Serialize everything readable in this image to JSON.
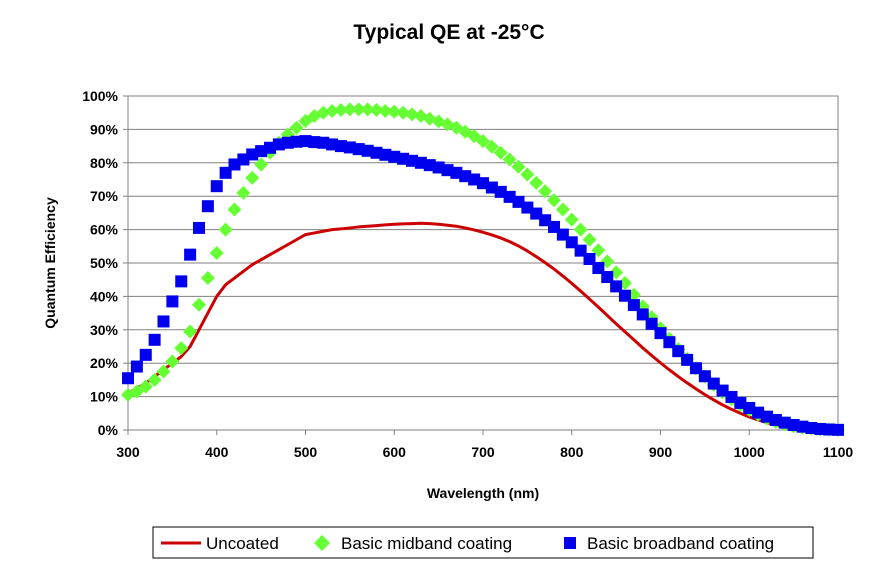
{
  "chart_data": {
    "type": "scatter",
    "title": "Typical QE at -25°C",
    "xlabel": "Wavelength (nm)",
    "ylabel": "Quantum Efficiency",
    "xlim": [
      300,
      1100
    ],
    "ylim": [
      0,
      100
    ],
    "x_ticks": [
      300,
      400,
      500,
      600,
      700,
      800,
      900,
      1000,
      1100
    ],
    "y_ticks": [
      0,
      10,
      20,
      30,
      40,
      50,
      60,
      70,
      80,
      90,
      100
    ],
    "y_tick_labels": [
      "0%",
      "10%",
      "20%",
      "30%",
      "40%",
      "50%",
      "60%",
      "70%",
      "80%",
      "90%",
      "100%"
    ],
    "grid": "horizontal",
    "legend_position": "bottom",
    "series": [
      {
        "name": "Uncoated",
        "style": "line",
        "color": "#cc0000",
        "x": [
          300,
          310,
          320,
          330,
          340,
          350,
          360,
          370,
          380,
          390,
          400,
          410,
          420,
          430,
          440,
          450,
          460,
          470,
          480,
          490,
          500,
          510,
          520,
          530,
          540,
          550,
          560,
          570,
          580,
          590,
          600,
          610,
          620,
          630,
          640,
          650,
          660,
          670,
          680,
          690,
          700,
          710,
          720,
          730,
          740,
          750,
          760,
          770,
          780,
          790,
          800,
          810,
          820,
          830,
          840,
          850,
          860,
          870,
          880,
          890,
          900,
          910,
          920,
          930,
          940,
          950,
          960,
          970,
          980,
          990,
          1000,
          1010,
          1020,
          1030,
          1040,
          1050,
          1060,
          1070,
          1080,
          1090,
          1100
        ],
        "y": [
          11,
          12.5,
          14,
          16,
          18,
          20,
          22,
          25,
          30,
          35,
          40,
          43.5,
          45.5,
          47.5,
          49.5,
          51,
          52.5,
          54,
          55.5,
          57,
          58.5,
          59,
          59.5,
          60,
          60.2,
          60.5,
          60.8,
          61,
          61.2,
          61.4,
          61.6,
          61.7,
          61.8,
          61.9,
          61.8,
          61.6,
          61.3,
          61,
          60.5,
          59.9,
          59.2,
          58.4,
          57.5,
          56.4,
          55.1,
          53.6,
          51.9,
          50.1,
          48.2,
          46.1,
          43.9,
          41.6,
          39.2,
          36.8,
          34.3,
          31.8,
          29.4,
          27,
          24.6,
          22.3,
          20.1,
          18,
          16,
          14.1,
          12.3,
          10.6,
          9,
          7.5,
          6.2,
          5,
          3.9,
          3,
          2.2,
          1.5,
          1,
          0.6,
          0.3,
          0.15,
          0.05,
          0,
          0
        ]
      },
      {
        "name": "Basic midband coating",
        "style": "diamond",
        "color": "#66ff33",
        "x": [
          300,
          310,
          320,
          330,
          340,
          350,
          360,
          370,
          380,
          390,
          400,
          410,
          420,
          430,
          440,
          450,
          460,
          470,
          480,
          490,
          500,
          510,
          520,
          530,
          540,
          550,
          560,
          570,
          580,
          590,
          600,
          610,
          620,
          630,
          640,
          650,
          660,
          670,
          680,
          690,
          700,
          710,
          720,
          730,
          740,
          750,
          760,
          770,
          780,
          790,
          800,
          810,
          820,
          830,
          840,
          850,
          860,
          870,
          880,
          890,
          900,
          910,
          920,
          930,
          940,
          950,
          960,
          970,
          980,
          990,
          1000,
          1010,
          1020,
          1030,
          1040,
          1050,
          1060,
          1070,
          1080,
          1090,
          1100
        ],
        "y": [
          10.5,
          11.5,
          13,
          15,
          17.5,
          20.5,
          24.5,
          29.5,
          37.5,
          45.5,
          53,
          60,
          66,
          71,
          75.5,
          79.5,
          83,
          86,
          88.5,
          90.5,
          92.5,
          94,
          95,
          95.5,
          95.8,
          96,
          96,
          96,
          95.8,
          95.5,
          95.3,
          95,
          94.5,
          94,
          93.2,
          92.4,
          91.5,
          90.5,
          89.3,
          88,
          86.5,
          84.8,
          83,
          81,
          78.8,
          76.5,
          74,
          71.5,
          68.8,
          66,
          63,
          60,
          57,
          53.8,
          50.5,
          47.2,
          44,
          40.5,
          37,
          33.8,
          30.5,
          27.3,
          24.2,
          21.3,
          18.5,
          16,
          13.5,
          11.3,
          9.3,
          7.5,
          6,
          4.6,
          3.4,
          2.4,
          1.7,
          1.1,
          0.7,
          0.4,
          0.2,
          0.1,
          0
        ]
      },
      {
        "name": "Basic broadband coating",
        "style": "square",
        "color": "#0000ee",
        "x": [
          300,
          310,
          320,
          330,
          340,
          350,
          360,
          370,
          380,
          390,
          400,
          410,
          420,
          430,
          440,
          450,
          460,
          470,
          480,
          490,
          500,
          510,
          520,
          530,
          540,
          550,
          560,
          570,
          580,
          590,
          600,
          610,
          620,
          630,
          640,
          650,
          660,
          670,
          680,
          690,
          700,
          710,
          720,
          730,
          740,
          750,
          760,
          770,
          780,
          790,
          800,
          810,
          820,
          830,
          840,
          850,
          860,
          870,
          880,
          890,
          900,
          910,
          920,
          930,
          940,
          950,
          960,
          970,
          980,
          990,
          1000,
          1010,
          1020,
          1030,
          1040,
          1050,
          1060,
          1070,
          1080,
          1090,
          1100
        ],
        "y": [
          15.5,
          19,
          22.5,
          27,
          32.5,
          38.5,
          44.5,
          52.5,
          60.5,
          67,
          73,
          77,
          79.5,
          81,
          82.5,
          83.5,
          84.5,
          85.5,
          86,
          86.3,
          86.5,
          86.2,
          86,
          85.5,
          85,
          84.6,
          84.1,
          83.6,
          83,
          82.4,
          81.8,
          81.2,
          80.6,
          80,
          79.3,
          78.6,
          77.8,
          77,
          76,
          75,
          73.9,
          72.6,
          71.3,
          69.8,
          68.3,
          66.6,
          64.8,
          62.8,
          60.8,
          58.5,
          56.2,
          53.7,
          51.2,
          48.5,
          45.8,
          43,
          40.2,
          37.4,
          34.6,
          31.8,
          29,
          26.3,
          23.6,
          21,
          18.5,
          16.1,
          13.9,
          11.8,
          9.9,
          8.1,
          6.6,
          5.2,
          4,
          3,
          2.2,
          1.5,
          1,
          0.6,
          0.3,
          0.15,
          0.05
        ]
      }
    ]
  }
}
